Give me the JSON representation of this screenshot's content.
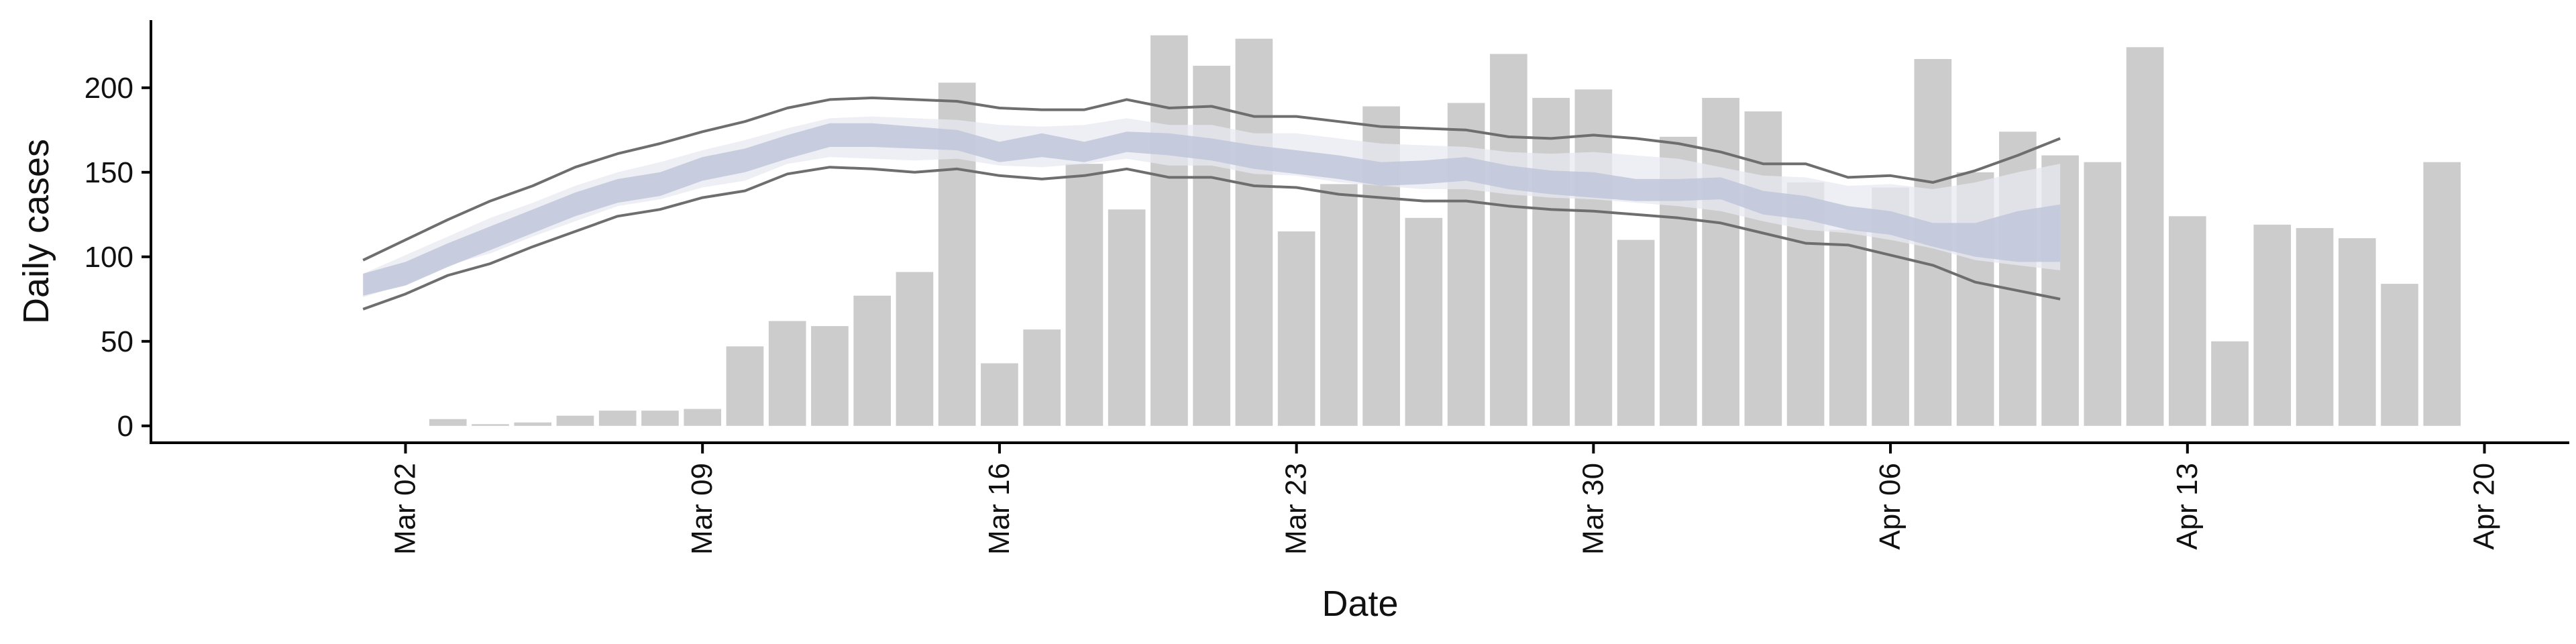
{
  "chart_data": {
    "type": "bar",
    "title": "",
    "xlabel": "Date",
    "ylabel": "Daily cases",
    "ylim": [
      -10,
      240
    ],
    "yticks": [
      0,
      50,
      100,
      150,
      200
    ],
    "xlim": [
      "2020-02-25",
      "2020-04-22"
    ],
    "xticks": [
      {
        "date": "2020-03-02",
        "label": "Mar 02"
      },
      {
        "date": "2020-03-09",
        "label": "Mar 09"
      },
      {
        "date": "2020-03-16",
        "label": "Mar 16"
      },
      {
        "date": "2020-03-23",
        "label": "Mar 23"
      },
      {
        "date": "2020-03-30",
        "label": "Mar 30"
      },
      {
        "date": "2020-04-06",
        "label": "Apr 06"
      },
      {
        "date": "2020-04-13",
        "label": "Apr 13"
      },
      {
        "date": "2020-04-20",
        "label": "Apr 20"
      }
    ],
    "grid": false,
    "bars": {
      "color": "#cccccc",
      "dates": [
        "2020-03-03",
        "2020-03-04",
        "2020-03-05",
        "2020-03-06",
        "2020-03-07",
        "2020-03-08",
        "2020-03-09",
        "2020-03-10",
        "2020-03-11",
        "2020-03-12",
        "2020-03-13",
        "2020-03-14",
        "2020-03-15",
        "2020-03-16",
        "2020-03-17",
        "2020-03-18",
        "2020-03-19",
        "2020-03-20",
        "2020-03-21",
        "2020-03-22",
        "2020-03-23",
        "2020-03-24",
        "2020-03-25",
        "2020-03-26",
        "2020-03-27",
        "2020-03-28",
        "2020-03-29",
        "2020-03-30",
        "2020-03-31",
        "2020-04-01",
        "2020-04-02",
        "2020-04-03",
        "2020-04-04",
        "2020-04-05",
        "2020-04-06",
        "2020-04-07",
        "2020-04-08",
        "2020-04-09",
        "2020-04-10",
        "2020-04-11",
        "2020-04-12",
        "2020-04-13",
        "2020-04-14",
        "2020-04-15",
        "2020-04-16",
        "2020-04-17",
        "2020-04-18",
        "2020-04-19"
      ],
      "values": [
        4,
        1,
        2,
        6,
        9,
        9,
        10,
        47,
        62,
        59,
        77,
        91,
        203,
        37,
        57,
        155,
        128,
        231,
        213,
        229,
        115,
        143,
        189,
        123,
        191,
        220,
        194,
        199,
        110,
        171,
        194,
        186,
        144,
        116,
        141,
        217,
        150,
        174,
        160,
        156,
        224,
        124,
        50,
        119,
        117,
        111,
        84,
        156
      ]
    },
    "series": [
      {
        "role": "outer-interval-upper",
        "color": "#6e6e6e",
        "dates": [
          "2020-03-01",
          "2020-03-02",
          "2020-03-03",
          "2020-03-04",
          "2020-03-05",
          "2020-03-06",
          "2020-03-07",
          "2020-03-08",
          "2020-03-09",
          "2020-03-10",
          "2020-03-11",
          "2020-03-12",
          "2020-03-13",
          "2020-03-14",
          "2020-03-15",
          "2020-03-16",
          "2020-03-17",
          "2020-03-18",
          "2020-03-19",
          "2020-03-20",
          "2020-03-21",
          "2020-03-22",
          "2020-03-23",
          "2020-03-24",
          "2020-03-25",
          "2020-03-26",
          "2020-03-27",
          "2020-03-28",
          "2020-03-29",
          "2020-03-30",
          "2020-03-31",
          "2020-04-01",
          "2020-04-02",
          "2020-04-03",
          "2020-04-04",
          "2020-04-05",
          "2020-04-06",
          "2020-04-07",
          "2020-04-08",
          "2020-04-09",
          "2020-04-10"
        ],
        "values": [
          98,
          110,
          122,
          133,
          142,
          153,
          161,
          167,
          174,
          180,
          188,
          193,
          194,
          193,
          192,
          188,
          187,
          187,
          193,
          188,
          189,
          183,
          183,
          180,
          177,
          176,
          175,
          171,
          170,
          172,
          170,
          167,
          162,
          155,
          155,
          147,
          148,
          144,
          151,
          160,
          170
        ]
      },
      {
        "role": "outer-interval-lower",
        "color": "#6e6e6e",
        "dates": [
          "2020-03-01",
          "2020-03-02",
          "2020-03-03",
          "2020-03-04",
          "2020-03-05",
          "2020-03-06",
          "2020-03-07",
          "2020-03-08",
          "2020-03-09",
          "2020-03-10",
          "2020-03-11",
          "2020-03-12",
          "2020-03-13",
          "2020-03-14",
          "2020-03-15",
          "2020-03-16",
          "2020-03-17",
          "2020-03-18",
          "2020-03-19",
          "2020-03-20",
          "2020-03-21",
          "2020-03-22",
          "2020-03-23",
          "2020-03-24",
          "2020-03-25",
          "2020-03-26",
          "2020-03-27",
          "2020-03-28",
          "2020-03-29",
          "2020-03-30",
          "2020-03-31",
          "2020-04-01",
          "2020-04-02",
          "2020-04-03",
          "2020-04-04",
          "2020-04-05",
          "2020-04-06",
          "2020-04-07",
          "2020-04-08",
          "2020-04-09",
          "2020-04-10"
        ],
        "values": [
          69,
          78,
          89,
          96,
          106,
          115,
          124,
          128,
          135,
          139,
          149,
          153,
          152,
          150,
          152,
          148,
          146,
          148,
          152,
          147,
          147,
          142,
          141,
          137,
          135,
          133,
          133,
          130,
          128,
          127,
          125,
          123,
          120,
          114,
          108,
          107,
          101,
          95,
          85,
          80,
          75
        ]
      },
      {
        "role": "middle-band",
        "color": "#e8eaf2",
        "dates": [
          "2020-03-01",
          "2020-03-02",
          "2020-03-03",
          "2020-03-04",
          "2020-03-05",
          "2020-03-06",
          "2020-03-07",
          "2020-03-08",
          "2020-03-09",
          "2020-03-10",
          "2020-03-11",
          "2020-03-12",
          "2020-03-13",
          "2020-03-14",
          "2020-03-15",
          "2020-03-16",
          "2020-03-17",
          "2020-03-18",
          "2020-03-19",
          "2020-03-20",
          "2020-03-21",
          "2020-03-22",
          "2020-03-23",
          "2020-03-24",
          "2020-03-25",
          "2020-03-26",
          "2020-03-27",
          "2020-03-28",
          "2020-03-29",
          "2020-03-30",
          "2020-03-31",
          "2020-04-01",
          "2020-04-02",
          "2020-04-03",
          "2020-04-04",
          "2020-04-05",
          "2020-04-06",
          "2020-04-07",
          "2020-04-08",
          "2020-04-09",
          "2020-04-10"
        ],
        "upper": [
          90,
          101,
          112,
          123,
          132,
          142,
          150,
          156,
          163,
          169,
          176,
          182,
          183,
          182,
          181,
          178,
          177,
          178,
          182,
          178,
          178,
          173,
          173,
          170,
          167,
          166,
          165,
          162,
          161,
          162,
          160,
          158,
          153,
          148,
          147,
          142,
          143,
          140,
          144,
          150,
          155
        ],
        "lower": [
          76,
          84,
          95,
          102,
          112,
          121,
          130,
          134,
          141,
          145,
          155,
          159,
          158,
          157,
          158,
          154,
          153,
          155,
          158,
          154,
          154,
          149,
          148,
          144,
          142,
          140,
          140,
          137,
          135,
          134,
          132,
          130,
          127,
          121,
          116,
          114,
          110,
          105,
          98,
          95,
          92
        ]
      },
      {
        "role": "inner-band",
        "color": "#bfc5d9",
        "dates": [
          "2020-03-01",
          "2020-03-02",
          "2020-03-03",
          "2020-03-04",
          "2020-03-05",
          "2020-03-06",
          "2020-03-07",
          "2020-03-08",
          "2020-03-09",
          "2020-03-10",
          "2020-03-11",
          "2020-03-12",
          "2020-03-13",
          "2020-03-14",
          "2020-03-15",
          "2020-03-16",
          "2020-03-17",
          "2020-03-18",
          "2020-03-19",
          "2020-03-20",
          "2020-03-21",
          "2020-03-22",
          "2020-03-23",
          "2020-03-24",
          "2020-03-25",
          "2020-03-26",
          "2020-03-27",
          "2020-03-28",
          "2020-03-29",
          "2020-03-30",
          "2020-03-31",
          "2020-04-01",
          "2020-04-02",
          "2020-04-03",
          "2020-04-04",
          "2020-04-05",
          "2020-04-06",
          "2020-04-07",
          "2020-04-08",
          "2020-04-09",
          "2020-04-10"
        ],
        "upper": [
          90,
          97,
          108,
          118,
          128,
          138,
          146,
          150,
          159,
          164,
          172,
          179,
          179,
          177,
          175,
          168,
          173,
          168,
          174,
          173,
          170,
          166,
          163,
          160,
          156,
          157,
          159,
          154,
          151,
          150,
          146,
          146,
          147,
          139,
          136,
          130,
          127,
          120,
          120,
          127,
          131
        ],
        "lower": [
          77,
          83,
          94,
          104,
          114,
          124,
          132,
          136,
          145,
          150,
          158,
          165,
          165,
          164,
          163,
          156,
          159,
          156,
          162,
          160,
          157,
          152,
          149,
          146,
          142,
          143,
          145,
          140,
          137,
          135,
          133,
          133,
          134,
          125,
          122,
          116,
          113,
          106,
          100,
          97,
          97
        ]
      }
    ]
  }
}
